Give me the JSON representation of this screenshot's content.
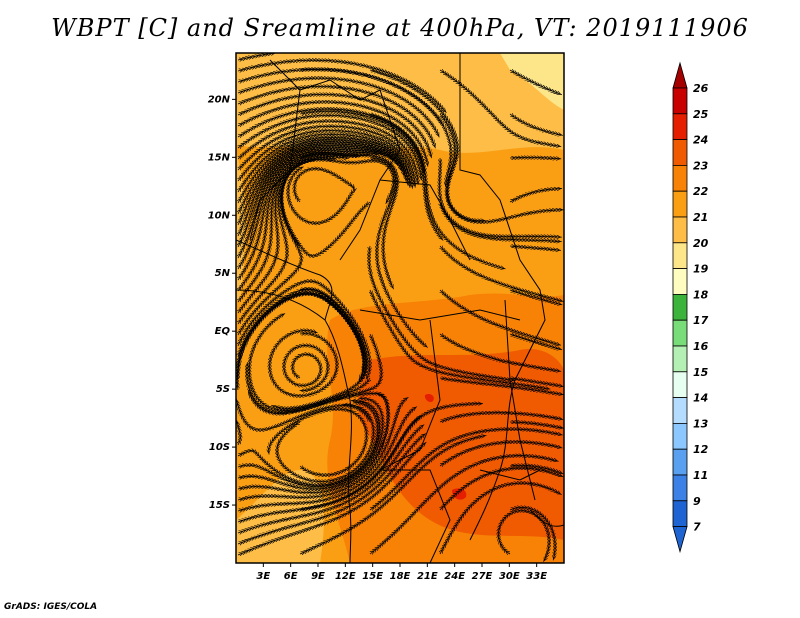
{
  "title": "WBPT [C] and Sreamline at 400hPa, VT: 2019111906",
  "footer": "GrADS: IGES/COLA",
  "map": {
    "lon_range": [
      0,
      36
    ],
    "lat_range": [
      -20,
      24
    ],
    "lon_ticks": [
      {
        "value": 3,
        "label": "3E"
      },
      {
        "value": 6,
        "label": "6E"
      },
      {
        "value": 9,
        "label": "9E"
      },
      {
        "value": 12,
        "label": "12E"
      },
      {
        "value": 15,
        "label": "15E"
      },
      {
        "value": 18,
        "label": "18E"
      },
      {
        "value": 21,
        "label": "21E"
      },
      {
        "value": 24,
        "label": "24E"
      },
      {
        "value": 27,
        "label": "27E"
      },
      {
        "value": 30,
        "label": "30E"
      },
      {
        "value": 33,
        "label": "33E"
      }
    ],
    "lat_ticks": [
      {
        "value": 20,
        "label": "20N"
      },
      {
        "value": 15,
        "label": "15N"
      },
      {
        "value": 10,
        "label": "10N"
      },
      {
        "value": 5,
        "label": "5N"
      },
      {
        "value": 0,
        "label": "EQ"
      },
      {
        "value": -5,
        "label": "5S"
      },
      {
        "value": -10,
        "label": "10S"
      },
      {
        "value": -15,
        "label": "15S"
      }
    ]
  },
  "colorbar": {
    "levels": [
      {
        "label": "26",
        "color": "#a50000"
      },
      {
        "label": "25",
        "color": "#c80000"
      },
      {
        "label": "24",
        "color": "#e61e00"
      },
      {
        "label": "23",
        "color": "#f05a00"
      },
      {
        "label": "22",
        "color": "#f78205"
      },
      {
        "label": "21",
        "color": "#fa9f14"
      },
      {
        "label": "20",
        "color": "#fdbd46"
      },
      {
        "label": "19",
        "color": "#fde58a"
      },
      {
        "label": "18",
        "color": "#fffcc0"
      },
      {
        "label": "17",
        "color": "#3cb43c"
      },
      {
        "label": "16",
        "color": "#78dc78"
      },
      {
        "label": "15",
        "color": "#b4f0b4"
      },
      {
        "label": "14",
        "color": "#e6fff0"
      },
      {
        "label": "13",
        "color": "#b4dcff"
      },
      {
        "label": "12",
        "color": "#8cc8ff"
      },
      {
        "label": "11",
        "color": "#5aa0f0"
      },
      {
        "label": "9",
        "color": "#3c82e6"
      },
      {
        "label": "7",
        "color": "#1e64d2"
      }
    ],
    "bottom_color": "#1e64d2"
  }
}
